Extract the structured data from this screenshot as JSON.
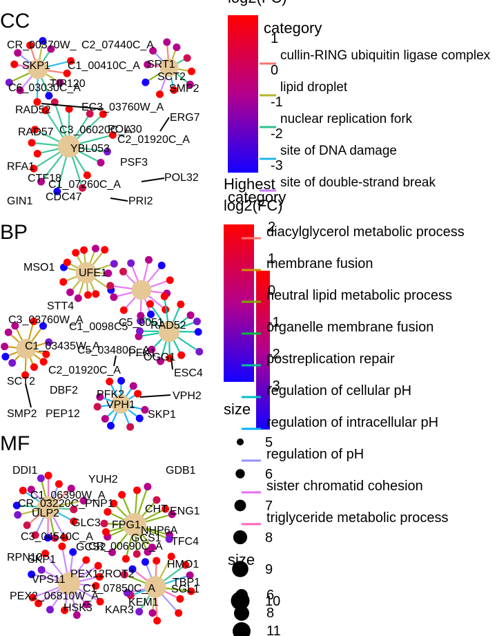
{
  "panels": [
    {
      "label": "CC",
      "hubs": [
        "CR_00370W_",
        "C2_07440C_A",
        "SKP1",
        "C1_00410C_A",
        "SRT1",
        "SCT2",
        "SMP2",
        "C6_03030C_A",
        "TIP120",
        "EC3_03760W_A",
        "RAD52",
        "ERG7",
        "RAD57",
        "C3_06020C_A",
        "POL30",
        "YBL053",
        "C2_01920C_A",
        "PSF3",
        "RFA1",
        "CTF18",
        "C1_07260C_A",
        "POL32",
        "GIN1",
        "CDC47",
        "PRI2"
      ],
      "genes": []
    },
    {
      "label": "BP",
      "hubs": [
        "MSO1",
        "UFE1",
        "STT4",
        "C3_03760W_A",
        "C1_0098C5",
        "C5_0051",
        "RAD52",
        "C1_03435W_A",
        "C5_03480C_A",
        "OGG1",
        "C2_01920C_A",
        "PFK1",
        "ESC4",
        "SCT2",
        "DBF2",
        "PFK2",
        "VPH1",
        "VPH2",
        "SMP2",
        "PEP12",
        "SKP1"
      ],
      "genes": []
    },
    {
      "label": "MF",
      "hubs": [
        "DDI1",
        "YUH2",
        "GDB1",
        "C1_06390W_A",
        "CR_03220C_PNP1",
        "ULP2",
        "CHT",
        "ENG1",
        "GLC3",
        "FPG1",
        "NHP6A",
        "GCS1",
        "C3_04540C_A",
        "TFC4",
        "GCS2",
        "CR_00690C_A",
        "RPN10",
        "HMO1",
        "SKP1",
        "PEX12",
        "ROT2",
        "TBP1",
        "VPS11",
        "C1_07850C_A",
        "SGL1",
        "PEX2_06810W_A",
        "KEM1",
        "HSK3",
        "KAR3"
      ],
      "genes": []
    }
  ],
  "legend": {
    "category_title": "category",
    "highest_title": "Highest",
    "log2fc_title": "log2(FC)",
    "size_title": "size",
    "cc_categories": [
      {
        "label": "cullin-RING ubiquitin ligase complex",
        "color": "#f8766d"
      },
      {
        "label": "lipid droplet",
        "color": "#b4b42c"
      },
      {
        "label": "nuclear replication fork",
        "color": "#2bc48c"
      },
      {
        "label": "site of DNA damage",
        "color": "#1fb8e8"
      },
      {
        "label": "site of double-strand break",
        "color": "#c77cff"
      }
    ],
    "bp_categories": [
      {
        "label": "diacylglycerol metabolic process",
        "color": "#f8766d"
      },
      {
        "label": "membrane fusion",
        "color": "#c99800"
      },
      {
        "label": "neutral lipid metabolic process",
        "color": "#7cae00"
      },
      {
        "label": "organelle membrane fusion",
        "color": "#00ba38"
      },
      {
        "label": "postreplication repair",
        "color": "#00c19f"
      },
      {
        "label": "regulation of cellular pH",
        "color": "#00bfc4"
      },
      {
        "label": "regulation of intracellular pH",
        "color": "#00b0f6"
      },
      {
        "label": "regulation of pH",
        "color": "#9590ff"
      },
      {
        "label": "sister chromatid cohesion",
        "color": "#e76bf3"
      },
      {
        "label": "triglyceride metabolic process",
        "color": "#ff62bc"
      }
    ],
    "cc_ticks": [
      "1",
      "0",
      "-1",
      "-2",
      "-3"
    ],
    "bp_ticks": [
      "2",
      "1",
      "0",
      "-1",
      "-2",
      "-3"
    ],
    "mf_ticks": [
      "1",
      "0",
      "-1",
      "-2",
      "-3"
    ],
    "size_values": [
      "5",
      "6",
      "7",
      "8",
      "9",
      "10"
    ],
    "size_values_2": [
      "6",
      "8",
      "11"
    ]
  },
  "colors": {
    "high": "#ff0000",
    "mid": "#b4008c",
    "low": "#1400ff",
    "hub": "#e6c896"
  },
  "chart_data": [
    {
      "type": "network",
      "title": "CC",
      "labels": [
        "CR_00370W_",
        "C2_07440C_A",
        "SKP1",
        "C1_00410C_A",
        "SRT1",
        "SCT2",
        "SMP2",
        "C6_03030C_A",
        "TIP120",
        "EC3_03760W_A",
        "RAD52",
        "ERG7",
        "RAD57",
        "C3_06020C_A",
        "POL30",
        "YBL053",
        "C2_01920C_A",
        "PSF3",
        "RFA1",
        "CTF18",
        "C1_07260C_A",
        "POL32",
        "GIN1",
        "CDC47",
        "PRI2"
      ]
    },
    {
      "type": "network",
      "title": "BP",
      "labels": [
        "MSO1",
        "UFE1",
        "STT4",
        "C3_03760W_A",
        "RAD52",
        "OGG1",
        "C2_01920C_A",
        "PFK1",
        "ESC4",
        "SCT2",
        "DBF2",
        "PFK2",
        "VPH1",
        "VPH2",
        "SMP2",
        "PEP12",
        "SKP1"
      ]
    },
    {
      "type": "network",
      "title": "MF",
      "labels": [
        "DDI1",
        "YUH2",
        "GDB1",
        "ULP2",
        "CHT",
        "ENG1",
        "GLC3",
        "FPG1",
        "NHP6A",
        "TFC4",
        "RPN10",
        "HMO1",
        "SKP1",
        "PEX12",
        "ROT2",
        "TBP1",
        "VPS11",
        "KEM1",
        "HSK3",
        "KAR3"
      ]
    }
  ]
}
